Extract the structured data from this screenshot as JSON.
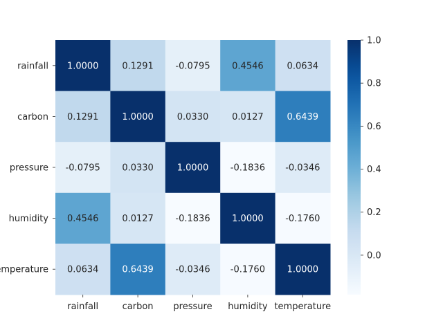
{
  "chart_data": {
    "type": "heatmap",
    "title": "",
    "xlabel": "",
    "ylabel": "",
    "row_labels": [
      "rainfall",
      "carbon",
      "pressure",
      "humidity",
      "temperature"
    ],
    "col_labels": [
      "rainfall",
      "carbon",
      "pressure",
      "humidity",
      "temperature"
    ],
    "values": [
      [
        1.0,
        0.1291,
        -0.0795,
        0.4546,
        0.0634
      ],
      [
        0.1291,
        1.0,
        0.033,
        0.0127,
        0.6439
      ],
      [
        -0.0795,
        0.033,
        1.0,
        -0.1836,
        -0.0346
      ],
      [
        0.4546,
        0.0127,
        -0.1836,
        1.0,
        -0.176
      ],
      [
        0.0634,
        0.6439,
        -0.0346,
        -0.176,
        1.0
      ]
    ],
    "cell_text": [
      [
        "1.0000",
        "0.1291",
        "-0.0795",
        "0.4546",
        "0.0634"
      ],
      [
        "0.1291",
        "1.0000",
        "0.0330",
        "0.0127",
        "0.6439"
      ],
      [
        "-0.0795",
        "0.0330",
        "1.0000",
        "-0.1836",
        "-0.0346"
      ],
      [
        "0.4546",
        "0.0127",
        "-0.1836",
        "1.0000",
        "-0.1760"
      ],
      [
        "0.0634",
        "0.6439",
        "-0.0346",
        "-0.1760",
        "1.0000"
      ]
    ],
    "colormap": "Blues",
    "colorbar": {
      "range": [
        -0.1836,
        1.0
      ],
      "ticks": [
        0.0,
        0.2,
        0.4,
        0.6,
        0.8,
        1.0
      ],
      "tick_labels": [
        "0.0",
        "0.2",
        "0.4",
        "0.6",
        "0.8",
        "1.0"
      ]
    }
  }
}
